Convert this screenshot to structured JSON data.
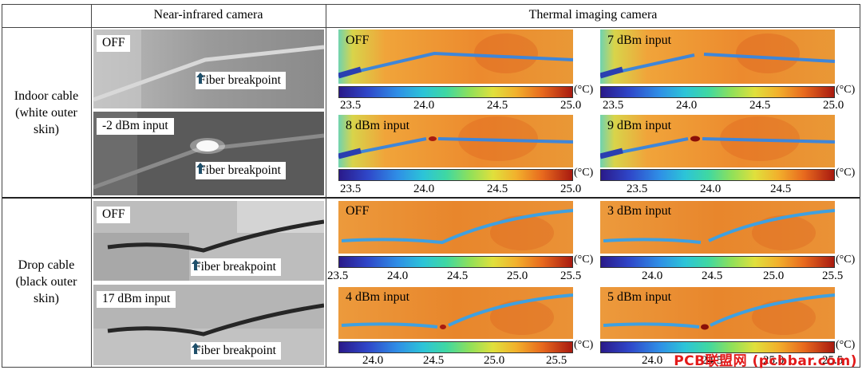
{
  "headers": {
    "nir": "Near-infrared camera",
    "thermal": "Thermal imaging camera"
  },
  "rows": {
    "indoor": [
      "Indoor cable",
      "(white outer",
      "skin)"
    ],
    "drop": [
      "Drop cable",
      "(black outer",
      "skin)"
    ]
  },
  "breakpoint_label": "Fiber breakpoint",
  "icons": {
    "breakpoint": "up-arrow-icon"
  },
  "nir_panels": {
    "indoor_off": "OFF",
    "indoor_input": "-2 dBm input",
    "drop_off": "OFF",
    "drop_input": "17 dBm input"
  },
  "thermal_panels": {
    "i1": "OFF",
    "i2": "7 dBm input",
    "i3": "8 dBm input",
    "i4": "9 dBm input",
    "d1": "OFF",
    "d2": "3 dBm input",
    "d3": "4 dBm input",
    "d4": "5 dBm input"
  },
  "unit": "(°C)",
  "scales": {
    "i_top_left": [
      "23.5",
      "24.0",
      "24.5",
      "25.0"
    ],
    "i_top_right": [
      "23.5",
      "24.0",
      "24.5",
      "25.0"
    ],
    "i_bot_left": [
      "23.5",
      "24.0",
      "24.5",
      "25.0"
    ],
    "i_bot_right": [
      "23.5",
      "24.0",
      "24.5"
    ],
    "d_top_left": [
      "23.5",
      "24.0",
      "24.5",
      "25.0",
      "25.5"
    ],
    "d_top_right": [
      "24.0",
      "24.5",
      "25.0",
      "25.5"
    ],
    "d_bot_left": [
      "24.0",
      "24.5",
      "25.0",
      "25.5"
    ],
    "d_bot_right": [
      "24.0",
      "24.5",
      "25.0",
      "25.5"
    ]
  },
  "colors": {
    "hot": "#c8401c",
    "cold": "#2f8ee6"
  },
  "watermark": "PCB联盟网 (pcbbar.com)"
}
